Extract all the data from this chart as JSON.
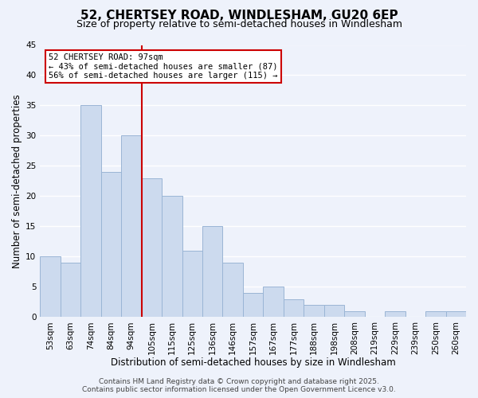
{
  "title": "52, CHERTSEY ROAD, WINDLESHAM, GU20 6EP",
  "subtitle": "Size of property relative to semi-detached houses in Windlesham",
  "xlabel": "Distribution of semi-detached houses by size in Windlesham",
  "ylabel": "Number of semi-detached properties",
  "categories": [
    "53sqm",
    "63sqm",
    "74sqm",
    "84sqm",
    "94sqm",
    "105sqm",
    "115sqm",
    "125sqm",
    "136sqm",
    "146sqm",
    "157sqm",
    "167sqm",
    "177sqm",
    "188sqm",
    "198sqm",
    "208sqm",
    "219sqm",
    "229sqm",
    "239sqm",
    "250sqm",
    "260sqm"
  ],
  "values": [
    10,
    9,
    35,
    24,
    30,
    23,
    20,
    11,
    15,
    9,
    4,
    5,
    3,
    2,
    2,
    1,
    0,
    1,
    0,
    1,
    1
  ],
  "bar_color": "#ccdaee",
  "bar_edge_color": "#9ab5d5",
  "vline_pos": 4.5,
  "vline_color": "#cc0000",
  "annotation_title": "52 CHERTSEY ROAD: 97sqm",
  "annotation_line1": "← 43% of semi-detached houses are smaller (87)",
  "annotation_line2": "56% of semi-detached houses are larger (115) →",
  "annotation_box_color": "#ffffff",
  "annotation_box_edge": "#cc0000",
  "ylim": [
    0,
    45
  ],
  "yticks": [
    0,
    5,
    10,
    15,
    20,
    25,
    30,
    35,
    40,
    45
  ],
  "footer1": "Contains HM Land Registry data © Crown copyright and database right 2025.",
  "footer2": "Contains public sector information licensed under the Open Government Licence v3.0.",
  "background_color": "#eef2fb",
  "grid_color": "#ffffff",
  "title_fontsize": 11,
  "subtitle_fontsize": 9,
  "axis_label_fontsize": 8.5,
  "tick_fontsize": 7.5,
  "annotation_fontsize": 7.5,
  "footer_fontsize": 6.5
}
